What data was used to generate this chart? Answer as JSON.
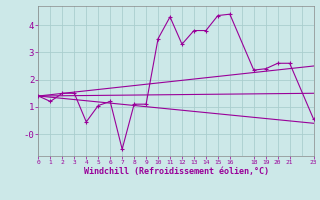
{
  "xlabel": "Windchill (Refroidissement éolien,°C)",
  "bg_color": "#cce8e8",
  "line_color": "#990099",
  "grid_color": "#aacece",
  "series1_x": [
    0,
    1,
    2,
    3,
    4,
    5,
    6,
    7,
    8,
    9,
    10,
    11,
    12,
    13,
    14,
    15,
    16,
    18,
    19,
    20,
    21,
    23
  ],
  "series1_y": [
    1.4,
    1.2,
    1.5,
    1.5,
    0.45,
    1.05,
    1.2,
    -0.55,
    1.1,
    1.1,
    3.5,
    4.3,
    3.3,
    3.8,
    3.8,
    4.35,
    4.4,
    2.35,
    2.4,
    2.6,
    2.6,
    0.55
  ],
  "series2_x": [
    0,
    23
  ],
  "series2_y": [
    1.4,
    2.5
  ],
  "series3_x": [
    0,
    23
  ],
  "series3_y": [
    1.4,
    1.5
  ],
  "series4_x": [
    0,
    23
  ],
  "series4_y": [
    1.4,
    0.4
  ],
  "xlim": [
    0,
    23
  ],
  "ylim": [
    -0.8,
    4.7
  ],
  "yticks": [
    0,
    1,
    2,
    3,
    4
  ],
  "ytick_labels": [
    "-0",
    "1",
    "2",
    "3",
    "4"
  ],
  "xticks": [
    0,
    1,
    2,
    3,
    4,
    5,
    6,
    7,
    8,
    9,
    10,
    11,
    12,
    13,
    14,
    15,
    16,
    18,
    19,
    20,
    21,
    23
  ]
}
